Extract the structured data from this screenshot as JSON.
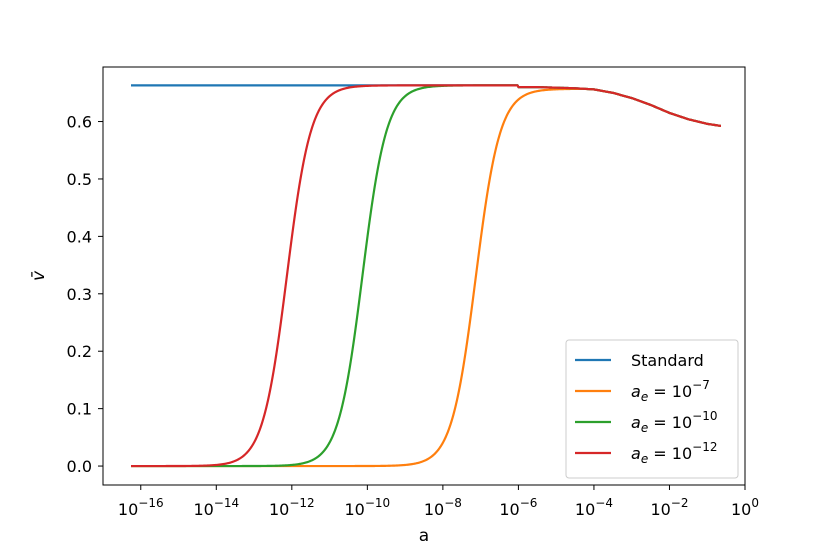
{
  "chart_data": {
    "type": "line",
    "xlabel": "a",
    "ylabel": "v̄",
    "xscale": "log",
    "xlim": [
      1e-17,
      1.0
    ],
    "ylim": [
      -0.033,
      0.695
    ],
    "grid": false,
    "legend_position": "lower-right",
    "x_ticks": [
      {
        "exp": -16,
        "base": "10",
        "sup": "−16"
      },
      {
        "exp": -14,
        "base": "10",
        "sup": "−14"
      },
      {
        "exp": -12,
        "base": "10",
        "sup": "−12"
      },
      {
        "exp": -10,
        "base": "10",
        "sup": "−10"
      },
      {
        "exp": -8,
        "base": "10",
        "sup": "−8"
      },
      {
        "exp": -6,
        "base": "10",
        "sup": "−6"
      },
      {
        "exp": -4,
        "base": "10",
        "sup": "−4"
      },
      {
        "exp": -2,
        "base": "10",
        "sup": "−2"
      },
      {
        "exp": 0,
        "base": "10",
        "sup": "0"
      }
    ],
    "y_ticks": [
      {
        "value": 0.0,
        "label": "0.0"
      },
      {
        "value": 0.1,
        "label": "0.1"
      },
      {
        "value": 0.2,
        "label": "0.2"
      },
      {
        "value": 0.3,
        "label": "0.3"
      },
      {
        "value": 0.4,
        "label": "0.4"
      },
      {
        "value": 0.5,
        "label": "0.5"
      },
      {
        "value": 0.6,
        "label": "0.6"
      }
    ],
    "late_curve": {
      "log_a": [
        -6.0,
        -5.5,
        -5.0,
        -4.5,
        -4.0,
        -3.5,
        -3.0,
        -2.5,
        -2.0,
        -1.5,
        -1.0,
        -0.6,
        -0.4,
        -0.2,
        0.0
      ],
      "y": [
        0.66,
        0.66,
        0.659,
        0.658,
        0.656,
        0.65,
        0.641,
        0.629,
        0.615,
        0.604,
        0.596,
        0.592,
        0.585,
        0.567,
        0.541
      ]
    },
    "series": [
      {
        "name": "Standard",
        "color": "#1f77b4",
        "plateau": 0.663,
        "onset_log_a": null,
        "width": null
      },
      {
        "name": "a_e = 10^{-7}",
        "color": "#ff7f0e",
        "plateau": 0.657,
        "onset_log_a": -7.13,
        "width": 0.32
      },
      {
        "name": "a_e = 10^{-10}",
        "color": "#2ca02c",
        "plateau": 0.663,
        "onset_log_a": -10.13,
        "width": 0.32
      },
      {
        "name": "a_e = 10^{-12}",
        "color": "#d62728",
        "plateau": 0.663,
        "onset_log_a": -12.13,
        "width": 0.32
      }
    ],
    "legend": [
      {
        "kind": "plain",
        "text": "Standard",
        "color": "#1f77b4"
      },
      {
        "kind": "ae",
        "var": "a",
        "sub": "e",
        "eq": " = 10",
        "sup": "−7",
        "color": "#ff7f0e"
      },
      {
        "kind": "ae",
        "var": "a",
        "sub": "e",
        "eq": " = 10",
        "sup": "−10",
        "color": "#2ca02c"
      },
      {
        "kind": "ae",
        "var": "a",
        "sub": "e",
        "eq": " = 10",
        "sup": "−12",
        "color": "#d62728"
      }
    ]
  }
}
